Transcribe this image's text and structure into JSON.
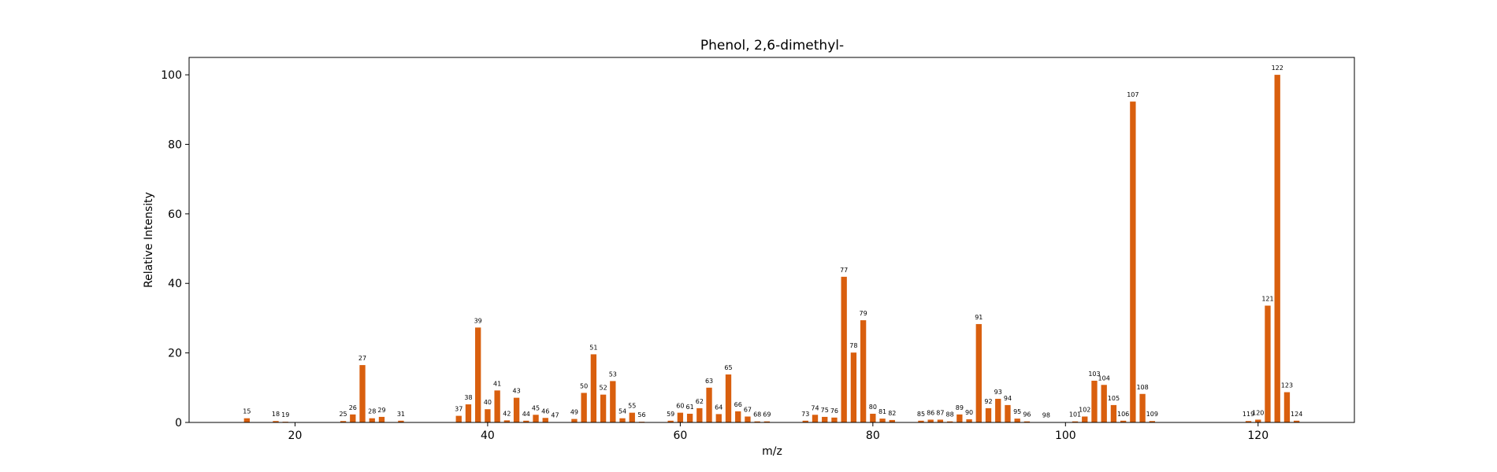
{
  "chart_data": {
    "type": "bar",
    "title": "Phenol, 2,6-dimethyl-",
    "xlabel": "m/z",
    "ylabel": "Relative Intensity",
    "xlim": [
      9,
      130
    ],
    "ylim": [
      0,
      105
    ],
    "xticks": [
      20,
      40,
      60,
      80,
      100,
      120
    ],
    "yticks": [
      0,
      20,
      40,
      60,
      80,
      100
    ],
    "bar_color": "#d95f0e",
    "grid": false,
    "points": [
      {
        "x": 15,
        "y": 1.2
      },
      {
        "x": 18,
        "y": 0.4
      },
      {
        "x": 19,
        "y": 0.2
      },
      {
        "x": 25,
        "y": 0.4
      },
      {
        "x": 26,
        "y": 2.3
      },
      {
        "x": 27,
        "y": 16.5
      },
      {
        "x": 28,
        "y": 1.2
      },
      {
        "x": 29,
        "y": 1.6
      },
      {
        "x": 31,
        "y": 0.5
      },
      {
        "x": 37,
        "y": 1.9
      },
      {
        "x": 38,
        "y": 5.2
      },
      {
        "x": 39,
        "y": 27.3
      },
      {
        "x": 40,
        "y": 3.8
      },
      {
        "x": 41,
        "y": 9.2
      },
      {
        "x": 42,
        "y": 0.6
      },
      {
        "x": 43,
        "y": 7.1
      },
      {
        "x": 44,
        "y": 0.5
      },
      {
        "x": 45,
        "y": 2.2
      },
      {
        "x": 46,
        "y": 1.3
      },
      {
        "x": 47,
        "y": 0.1
      },
      {
        "x": 49,
        "y": 1.0
      },
      {
        "x": 50,
        "y": 8.5
      },
      {
        "x": 51,
        "y": 19.6
      },
      {
        "x": 52,
        "y": 8.0
      },
      {
        "x": 53,
        "y": 11.9
      },
      {
        "x": 54,
        "y": 1.2
      },
      {
        "x": 55,
        "y": 2.8
      },
      {
        "x": 56,
        "y": 0.2
      },
      {
        "x": 59,
        "y": 0.5
      },
      {
        "x": 60,
        "y": 2.8
      },
      {
        "x": 61,
        "y": 2.5
      },
      {
        "x": 62,
        "y": 4.1
      },
      {
        "x": 63,
        "y": 10.0
      },
      {
        "x": 64,
        "y": 2.4
      },
      {
        "x": 65,
        "y": 13.8
      },
      {
        "x": 66,
        "y": 3.2
      },
      {
        "x": 67,
        "y": 1.7
      },
      {
        "x": 68,
        "y": 0.3
      },
      {
        "x": 69,
        "y": 0.3
      },
      {
        "x": 73,
        "y": 0.5
      },
      {
        "x": 74,
        "y": 2.2
      },
      {
        "x": 75,
        "y": 1.6
      },
      {
        "x": 76,
        "y": 1.4
      },
      {
        "x": 77,
        "y": 41.9
      },
      {
        "x": 78,
        "y": 20.1
      },
      {
        "x": 79,
        "y": 29.4
      },
      {
        "x": 80,
        "y": 2.5
      },
      {
        "x": 81,
        "y": 1.1
      },
      {
        "x": 82,
        "y": 0.7
      },
      {
        "x": 85,
        "y": 0.5
      },
      {
        "x": 86,
        "y": 0.8
      },
      {
        "x": 87,
        "y": 0.8
      },
      {
        "x": 88,
        "y": 0.3
      },
      {
        "x": 89,
        "y": 2.3
      },
      {
        "x": 90,
        "y": 0.9
      },
      {
        "x": 91,
        "y": 28.3
      },
      {
        "x": 92,
        "y": 4.1
      },
      {
        "x": 93,
        "y": 6.8
      },
      {
        "x": 94,
        "y": 5.0
      },
      {
        "x": 95,
        "y": 1.1
      },
      {
        "x": 96,
        "y": 0.3
      },
      {
        "x": 98,
        "y": 0.1
      },
      {
        "x": 101,
        "y": 0.3
      },
      {
        "x": 102,
        "y": 1.7
      },
      {
        "x": 103,
        "y": 12.0
      },
      {
        "x": 104,
        "y": 10.8
      },
      {
        "x": 105,
        "y": 5.0
      },
      {
        "x": 106,
        "y": 0.5
      },
      {
        "x": 107,
        "y": 92.3
      },
      {
        "x": 108,
        "y": 8.2
      },
      {
        "x": 109,
        "y": 0.4
      },
      {
        "x": 119,
        "y": 0.4
      },
      {
        "x": 120,
        "y": 0.8
      },
      {
        "x": 121,
        "y": 33.6
      },
      {
        "x": 122,
        "y": 100
      },
      {
        "x": 123,
        "y": 8.7
      },
      {
        "x": 124,
        "y": 0.5
      }
    ]
  }
}
